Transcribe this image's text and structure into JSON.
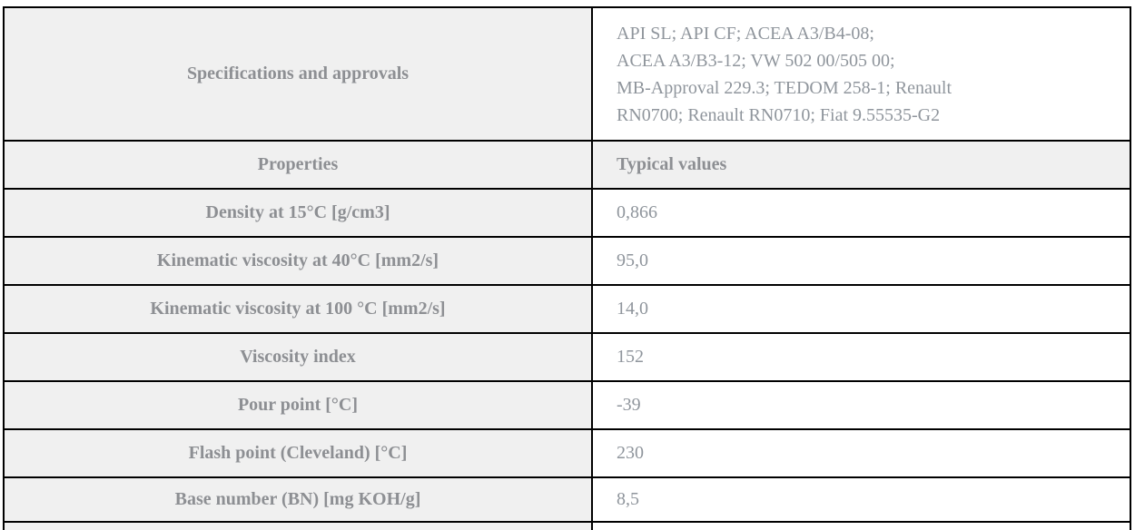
{
  "table": {
    "spec_row": {
      "label": "Specifications and approvals",
      "value": "API SL; API CF; ACEA A3/B4-08;\nACEA A3/B3-12; VW 502 00/505 00;\nMB-Approval 229.3; TEDOM 258-1; Renault\nRN0700; Renault RN0710; Fiat 9.55535-G2"
    },
    "header_row": {
      "label": "Properties",
      "value": "Typical values"
    },
    "rows": [
      {
        "label": "Density at 15°C [g/cm3]",
        "value": "0,866"
      },
      {
        "label": "Kinematic viscosity at 40°C [mm2/s]",
        "value": "95,0"
      },
      {
        "label": "Kinematic viscosity at 100 °C [mm2/s]",
        "value": "14,0"
      },
      {
        "label": "Viscosity index",
        "value": "152"
      },
      {
        "label": "Pour point [°C]",
        "value": "-39"
      },
      {
        "label": "Flash point (Cleveland) [°C]",
        "value": "230"
      },
      {
        "label": "Base number (BN) [mg KOH/g]",
        "value": "8,5"
      }
    ],
    "colors": {
      "label_background": "#f0f0f0",
      "value_background": "#ffffff",
      "label_text": "#8d8f93",
      "value_text": "#8f959c",
      "border": "#000000"
    }
  }
}
